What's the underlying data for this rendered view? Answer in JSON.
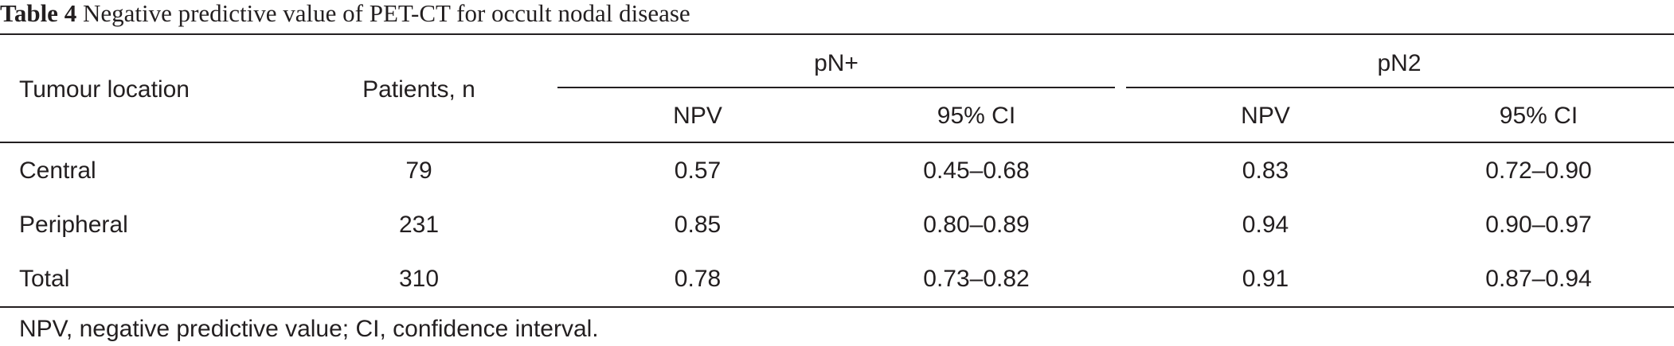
{
  "caption": {
    "label": "Table 4",
    "text": "Negative predictive value of PET-CT for occult nodal disease"
  },
  "header": {
    "location": "Tumour location",
    "patients": "Patients, n",
    "group1": "pN+",
    "group2": "pN2",
    "npv1": "NPV",
    "ci1": "95% CI",
    "npv2": "NPV",
    "ci2": "95% CI"
  },
  "rows": [
    {
      "location": "Central",
      "patients": "79",
      "npv1": "0.57",
      "ci1": "0.45–0.68",
      "npv2": "0.83",
      "ci2": "0.72–0.90"
    },
    {
      "location": "Peripheral",
      "patients": "231",
      "npv1": "0.85",
      "ci1": "0.80–0.89",
      "npv2": "0.94",
      "ci2": "0.90–0.97"
    },
    {
      "location": "Total",
      "patients": "310",
      "npv1": "0.78",
      "ci1": "0.73–0.82",
      "npv2": "0.91",
      "ci2": "0.87–0.94"
    }
  ],
  "footnote": "NPV, negative predictive value; CI, confidence interval."
}
